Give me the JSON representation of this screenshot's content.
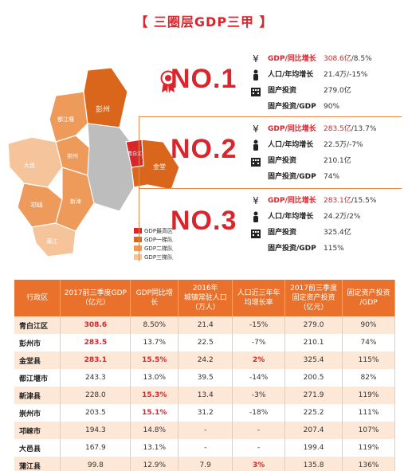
{
  "title": "【 三圈层GDP三甲 】",
  "map": {
    "districts": [
      {
        "name": "彭州"
      },
      {
        "name": "都江堰"
      },
      {
        "name": "崇州"
      },
      {
        "name": "大邑"
      },
      {
        "name": "邛崃"
      },
      {
        "name": "蒲江"
      },
      {
        "name": "新津"
      },
      {
        "name": "金堂"
      },
      {
        "name": "青白江"
      }
    ],
    "legend": [
      "GDP最高区",
      "GDP一梯队",
      "GDP二梯队",
      "GDP三梯队"
    ],
    "colors": {
      "top": "#d9252b",
      "tier1": "#d9661b",
      "tier2": "#ee9a5a",
      "tier3": "#f6c49a",
      "urban": "#bdbdbd"
    }
  },
  "ranks": [
    {
      "label": "NO.1",
      "gdp_label": "GDP/同比增长",
      "gdp_value": "308.6亿",
      "gdp_growth": "/8.5%",
      "pop_label": "人口/年均增长",
      "pop_value": "21.4万/-15%",
      "inv_label": "固产投资",
      "inv_value": "279.0亿",
      "ratio_label": "固产投资/GDP",
      "ratio_value": "90%"
    },
    {
      "label": "NO.2",
      "gdp_label": "GDP/同比增长",
      "gdp_value": "283.5亿",
      "gdp_growth": "/13.7%",
      "pop_label": "人口/年均增长",
      "pop_value": "22.5万/-7%",
      "inv_label": "固产投资",
      "inv_value": "210.1亿",
      "ratio_label": "固产投资/GDP",
      "ratio_value": "74%"
    },
    {
      "label": "NO.3",
      "gdp_label": "GDP/同比增长",
      "gdp_value": "283.1亿",
      "gdp_growth": "/15.5%",
      "pop_label": "人口/年均增长",
      "pop_value": "24.2万/2%",
      "inv_label": "固产投资",
      "inv_value": "325.4亿",
      "ratio_label": "固产投资/GDP",
      "ratio_value": "115%"
    }
  ],
  "table": {
    "headers": [
      "行政区",
      "2017前三季度GDP\n（亿元）",
      "GDP同比增长",
      "2016年\n城镇常驻人口\n（万人）",
      "人口近三年年\n均增长率",
      "2017前三季度\n固定资产投资\n（亿元）",
      "固定资产投资\n/GDP"
    ],
    "rows": [
      [
        "青白江区",
        "308.6",
        "8.50%",
        "21.4",
        "-15%",
        "279.0",
        "90%"
      ],
      [
        "彭州市",
        "283.5",
        "13.7%",
        "22.5",
        "-7%",
        "210.1",
        "74%"
      ],
      [
        "金堂县",
        "283.1",
        "15.5%",
        "24.2",
        "2%",
        "325.4",
        "115%"
      ],
      [
        "都江堰市",
        "243.3",
        "13.0%",
        "39.5",
        "-14%",
        "200.5",
        "82%"
      ],
      [
        "新津县",
        "228.0",
        "15.3%",
        "13.4",
        "-3%",
        "271.9",
        "119%"
      ],
      [
        "崇州市",
        "203.5",
        "15.1%",
        "31.2",
        "-18%",
        "225.2",
        "111%"
      ],
      [
        "邛崃市",
        "194.3",
        "14.8%",
        "-",
        "-",
        "207.4",
        "107%"
      ],
      [
        "大邑县",
        "167.9",
        "13.1%",
        "-",
        "-",
        "199.4",
        "119%"
      ],
      [
        "蒲江县",
        "99.8",
        "12.9%",
        "7.9",
        "3%",
        "135.8",
        "136%"
      ]
    ],
    "highlights": [
      [
        0,
        1
      ],
      [
        1,
        1
      ],
      [
        2,
        1
      ],
      [
        2,
        2
      ],
      [
        2,
        4
      ],
      [
        4,
        2
      ],
      [
        5,
        2
      ],
      [
        8,
        4
      ]
    ]
  }
}
